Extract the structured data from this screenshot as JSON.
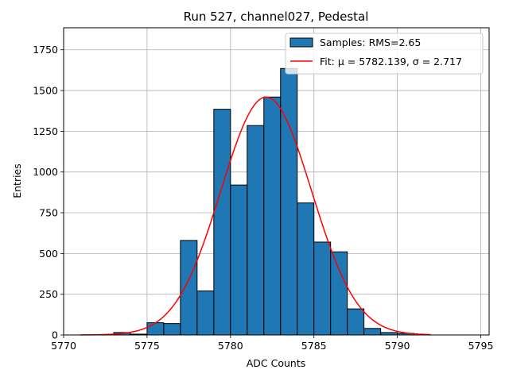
{
  "chart_data": {
    "type": "bar",
    "title": "Run 527, channel027, Pedestal",
    "xlabel": "ADC Counts",
    "ylabel": "Entries",
    "xlim": [
      5770,
      5795.5
    ],
    "ylim": [
      0,
      1885
    ],
    "xticks": [
      5770,
      5775,
      5780,
      5785,
      5790,
      5795
    ],
    "yticks": [
      0,
      250,
      500,
      750,
      1000,
      1250,
      1500,
      1750
    ],
    "grid": true,
    "legend_placement": "top-right",
    "bin_width": 1,
    "bins": [
      {
        "x": 5773,
        "value": 15
      },
      {
        "x": 5774,
        "value": 5
      },
      {
        "x": 5775,
        "value": 75
      },
      {
        "x": 5776,
        "value": 70
      },
      {
        "x": 5777,
        "value": 580
      },
      {
        "x": 5778,
        "value": 270
      },
      {
        "x": 5779,
        "value": 1385
      },
      {
        "x": 5780,
        "value": 920
      },
      {
        "x": 5781,
        "value": 1285
      },
      {
        "x": 5782,
        "value": 1460
      },
      {
        "x": 5783,
        "value": 1635
      },
      {
        "x": 5784,
        "value": 810
      },
      {
        "x": 5785,
        "value": 570
      },
      {
        "x": 5786,
        "value": 510
      },
      {
        "x": 5787,
        "value": 160
      },
      {
        "x": 5788,
        "value": 40
      },
      {
        "x": 5789,
        "value": 15
      },
      {
        "x": 5790,
        "value": 10
      }
    ],
    "fit": {
      "mu": 5782.139,
      "sigma": 2.717,
      "amplitude": 1460,
      "x_range": [
        5771,
        5792
      ]
    },
    "series": [
      {
        "name": "Samples: RMS=2.65",
        "type": "bar",
        "color": "#1f77b4",
        "edge_color": "#000000"
      },
      {
        "name": "Fit: μ = 5782.139, σ = 2.717",
        "type": "line",
        "color": "#ff0000"
      }
    ]
  }
}
